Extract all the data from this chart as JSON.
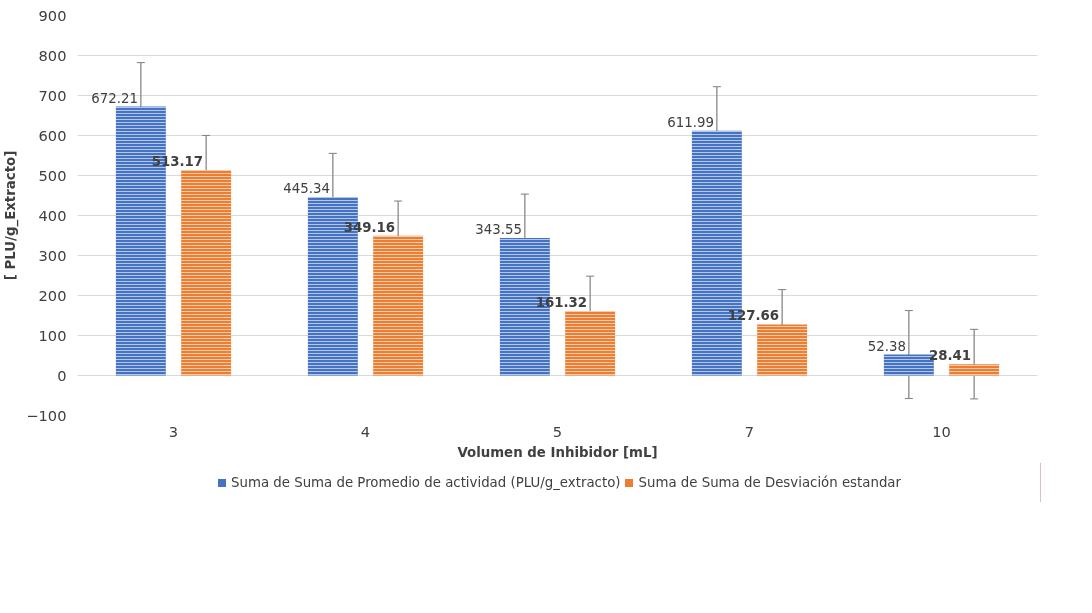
{
  "chart_data": {
    "type": "bar",
    "xlabel": "Volumen de Inhibidor [mL]",
    "ylabel": "[ PLU/g_Extracto]",
    "categories": [
      "3",
      "4",
      "5",
      "7",
      "10"
    ],
    "series": [
      {
        "name": "Suma de Suma de Promedio de actividad (PLU/g_extracto)",
        "color": "#4472c4",
        "values": [
          672.21,
          445.34,
          343.55,
          611.99,
          52.38
        ],
        "errors": [
          110,
          110,
          110,
          110,
          110
        ]
      },
      {
        "name": "Suma de Suma de Desviación estandar",
        "color": "#ed7d31",
        "values": [
          513.17,
          349.16,
          161.32,
          127.66,
          28.41
        ],
        "errors": [
          87,
          87,
          87,
          87,
          87
        ]
      }
    ],
    "ylim": [
      -100,
      900
    ],
    "yticks": [
      -100,
      0,
      100,
      200,
      300,
      400,
      500,
      600,
      700,
      800,
      900
    ],
    "grid": "y",
    "legend": "bottom",
    "data_labels": true
  }
}
